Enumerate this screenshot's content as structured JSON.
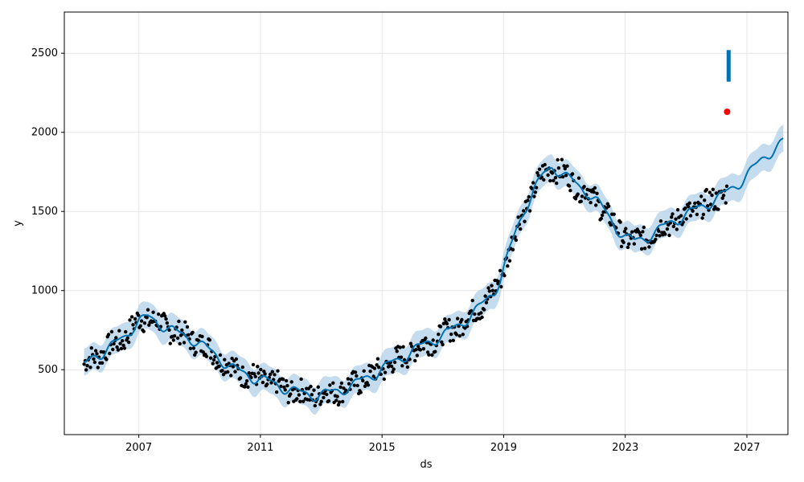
{
  "chart_data": {
    "type": "line",
    "title": "",
    "xlabel": "ds",
    "ylabel": "y",
    "xlim": [
      2004.55,
      2028.35
    ],
    "ylim": [
      90,
      2760
    ],
    "grid": true,
    "x_ticks": [
      2007,
      2011,
      2015,
      2019,
      2023,
      2027
    ],
    "y_ticks": [
      500,
      1000,
      1500,
      2000,
      2500
    ],
    "colors": {
      "observed": "#000000",
      "forecast": "#0072b2",
      "uncertainty": "#a6cae6",
      "last_point": "#ff0000",
      "grid": "#e6e6e6"
    },
    "series": [
      {
        "name": "",
        "role": "forecast",
        "points": [
          [
            2005.2,
            525
          ],
          [
            2005.5,
            580
          ],
          [
            2005.8,
            610
          ],
          [
            2006.1,
            650
          ],
          [
            2006.5,
            700
          ],
          [
            2006.8,
            770
          ],
          [
            2007.0,
            810
          ],
          [
            2007.3,
            830
          ],
          [
            2007.6,
            800
          ],
          [
            2008.0,
            760
          ],
          [
            2008.4,
            720
          ],
          [
            2008.8,
            690
          ],
          [
            2009.2,
            640
          ],
          [
            2009.6,
            580
          ],
          [
            2010.0,
            520
          ],
          [
            2010.4,
            480
          ],
          [
            2010.8,
            450
          ],
          [
            2011.2,
            430
          ],
          [
            2011.6,
            400
          ],
          [
            2012.0,
            370
          ],
          [
            2012.4,
            350
          ],
          [
            2012.8,
            340
          ],
          [
            2013.2,
            350
          ],
          [
            2013.6,
            370
          ],
          [
            2014.0,
            400
          ],
          [
            2014.4,
            440
          ],
          [
            2014.8,
            480
          ],
          [
            2015.2,
            530
          ],
          [
            2015.6,
            570
          ],
          [
            2016.0,
            620
          ],
          [
            2016.4,
            660
          ],
          [
            2016.8,
            700
          ],
          [
            2017.2,
            740
          ],
          [
            2017.6,
            790
          ],
          [
            2018.0,
            860
          ],
          [
            2018.4,
            930
          ],
          [
            2018.7,
            1000
          ],
          [
            2018.9,
            1080
          ],
          [
            2019.1,
            1200
          ],
          [
            2019.4,
            1370
          ],
          [
            2019.7,
            1520
          ],
          [
            2020.0,
            1640
          ],
          [
            2020.3,
            1730
          ],
          [
            2020.6,
            1780
          ],
          [
            2020.9,
            1750
          ],
          [
            2021.2,
            1700
          ],
          [
            2021.5,
            1650
          ],
          [
            2021.8,
            1620
          ],
          [
            2022.1,
            1560
          ],
          [
            2022.4,
            1480
          ],
          [
            2022.7,
            1400
          ],
          [
            2023.0,
            1340
          ],
          [
            2023.3,
            1310
          ],
          [
            2023.6,
            1330
          ],
          [
            2024.0,
            1370
          ],
          [
            2024.4,
            1420
          ],
          [
            2024.8,
            1460
          ],
          [
            2025.2,
            1500
          ],
          [
            2025.6,
            1540
          ],
          [
            2026.0,
            1580
          ],
          [
            2026.4,
            1630
          ],
          [
            2026.8,
            1690
          ],
          [
            2027.2,
            1770
          ],
          [
            2027.6,
            1850
          ],
          [
            2028.0,
            1910
          ],
          [
            2028.2,
            1940
          ]
        ]
      }
    ],
    "last_observed": [
      2026.35,
      2130
    ]
  }
}
